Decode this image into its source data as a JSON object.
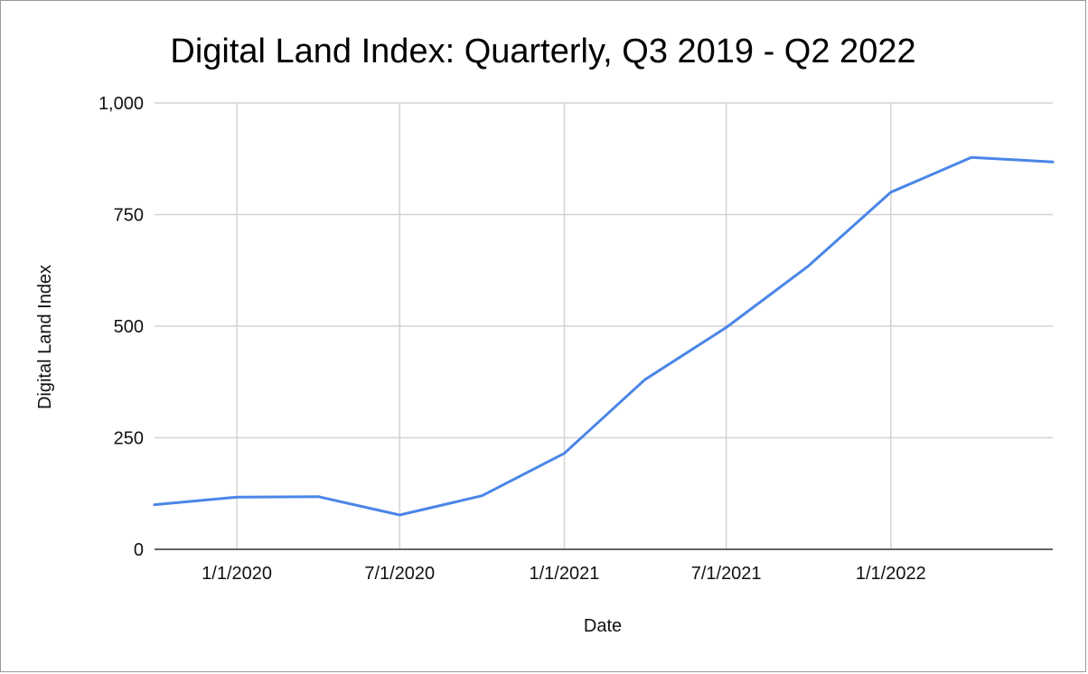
{
  "chart_data": {
    "type": "line",
    "title": "Digital Land Index: Quarterly, Q3 2019 - Q2 2022",
    "xlabel": "Date",
    "ylabel": "Digital Land Index",
    "x_tick_labels": [
      "1/1/2020",
      "7/1/2020",
      "1/1/2021",
      "7/1/2021",
      "1/1/2022"
    ],
    "x_tick_dates": [
      "2020-01-01",
      "2020-07-01",
      "2021-01-01",
      "2021-07-01",
      "2022-01-01"
    ],
    "y_ticks": [
      0,
      250,
      500,
      750,
      1000
    ],
    "y_tick_labels": [
      "0",
      "250",
      "500",
      "750",
      "1,000"
    ],
    "ylim": [
      0,
      1000
    ],
    "xlim": [
      "2019-10-01",
      "2022-07-01"
    ],
    "grid": true,
    "series": [
      {
        "color": "#4a86e8",
        "x": [
          "2019-10-01",
          "2020-01-01",
          "2020-04-01",
          "2020-07-01",
          "2020-10-01",
          "2021-01-01",
          "2021-04-01",
          "2021-07-01",
          "2021-10-01",
          "2022-01-01",
          "2022-04-01",
          "2022-07-01"
        ],
        "values": [
          100,
          117,
          118,
          77,
          120,
          215,
          380,
          497,
          635,
          800,
          878,
          868
        ]
      }
    ]
  }
}
